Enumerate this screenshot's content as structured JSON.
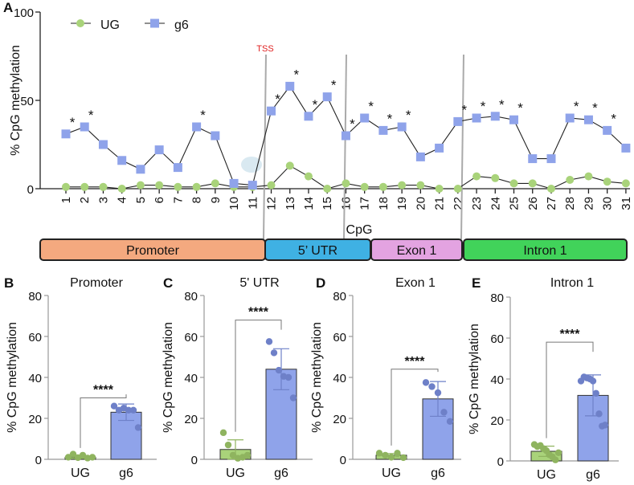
{
  "colors": {
    "ug": "#a9d37a",
    "ug_dark": "#8fb45f",
    "g6": "#8fa3ea",
    "g6_dark": "#6e80c8",
    "tss": "#e02020"
  },
  "chart_data": [
    {
      "panel": "A",
      "type": "line",
      "xlabel": "CpG",
      "ylabel": "% CpG methylation",
      "ylim": [
        0,
        100
      ],
      "yticks": [
        0,
        50,
        100
      ],
      "x": [
        1,
        2,
        3,
        4,
        5,
        6,
        7,
        8,
        9,
        10,
        11,
        12,
        13,
        14,
        15,
        16,
        17,
        18,
        19,
        20,
        21,
        22,
        23,
        24,
        25,
        26,
        27,
        28,
        29,
        30,
        31
      ],
      "series": [
        {
          "name": "UG",
          "marker": "circle",
          "values": [
            1,
            1,
            1,
            0,
            2,
            2,
            1,
            1,
            3,
            1,
            1,
            2,
            13,
            7,
            0,
            3,
            1,
            1,
            2,
            2,
            0,
            0,
            7,
            6,
            3,
            3,
            0,
            5,
            7,
            4,
            3
          ]
        },
        {
          "name": "g6",
          "marker": "square",
          "values": [
            31,
            35,
            25,
            16,
            11,
            22,
            12,
            35,
            30,
            3,
            2,
            44,
            58,
            41,
            52,
            30,
            40,
            33,
            35,
            18,
            23,
            38,
            40,
            41,
            39,
            17,
            17,
            40,
            39,
            33,
            23
          ]
        }
      ],
      "significant": [
        1,
        2,
        8,
        12,
        13,
        14,
        15,
        16,
        17,
        18,
        19,
        22,
        23,
        24,
        25,
        28,
        29,
        30
      ],
      "star_label": "*",
      "annotation": "TSS",
      "legend": "top-left",
      "regions": [
        {
          "label": "Promoter",
          "from": 1,
          "to": 11,
          "color": "#f4a97f"
        },
        {
          "label": "5’ UTR",
          "from": 12,
          "to": 17,
          "color": "#3fb1e3"
        },
        {
          "label": "Exon 1",
          "from": 18,
          "to": 22,
          "color": "#e3a3e1"
        },
        {
          "label": "Intron 1",
          "from": 23,
          "to": 31,
          "color": "#41d35a"
        }
      ]
    },
    {
      "panel": "B",
      "type": "bar",
      "title": "Promoter",
      "ylabel": "% CpG methylation",
      "ylim": [
        0,
        80
      ],
      "yticks": [
        0,
        20,
        40,
        60,
        80
      ],
      "categories": [
        "UG",
        "g6"
      ],
      "values": [
        1,
        23
      ],
      "sd": [
        0.6,
        4
      ],
      "points": [
        [
          1,
          2.5,
          0.8,
          2,
          0.6,
          1
        ],
        [
          26,
          24,
          25,
          24,
          24,
          15.5
        ]
      ],
      "significance": "****",
      "bracket_y": 30
    },
    {
      "panel": "C",
      "type": "bar",
      "title": "5' UTR",
      "ylabel": "% CpG methylation",
      "ylim": [
        0,
        80
      ],
      "yticks": [
        0,
        20,
        40,
        60,
        80
      ],
      "categories": [
        "UG",
        "g6"
      ],
      "values": [
        4.8,
        44
      ],
      "sd": [
        4.7,
        10
      ],
      "points": [
        [
          13,
          7,
          2,
          0.5,
          1,
          2
        ],
        [
          57.5,
          52,
          43.5,
          40.5,
          40,
          30
        ]
      ],
      "significance": "****",
      "bracket_y": 68
    },
    {
      "panel": "D",
      "type": "bar",
      "title": "Exon 1",
      "ylabel": "% CpG methylation",
      "ylim": [
        0,
        80
      ],
      "yticks": [
        0,
        20,
        40,
        60,
        80
      ],
      "categories": [
        "UG",
        "g6"
      ],
      "values": [
        2,
        29.5
      ],
      "sd": [
        0.8,
        8.5
      ],
      "points": [
        [
          3,
          2,
          1,
          3,
          0.8
        ],
        [
          37.5,
          35.5,
          32.5,
          23,
          18.5
        ]
      ],
      "significance": "****",
      "bracket_y": 44
    },
    {
      "panel": "E",
      "type": "bar",
      "title": "Intron 1",
      "ylabel": "% CpG methylation",
      "ylim": [
        0,
        80
      ],
      "yticks": [
        0,
        20,
        40,
        60,
        80
      ],
      "categories": [
        "UG",
        "g6"
      ],
      "values": [
        4.7,
        32
      ],
      "sd": [
        2.5,
        10
      ],
      "points": [
        [
          8,
          7,
          7.5,
          6,
          5,
          3,
          2,
          0.5,
          4
        ],
        [
          39,
          41,
          40.5,
          40,
          39,
          33,
          23,
          17,
          17.5
        ]
      ],
      "significance": "****",
      "bracket_y": 58
    }
  ]
}
